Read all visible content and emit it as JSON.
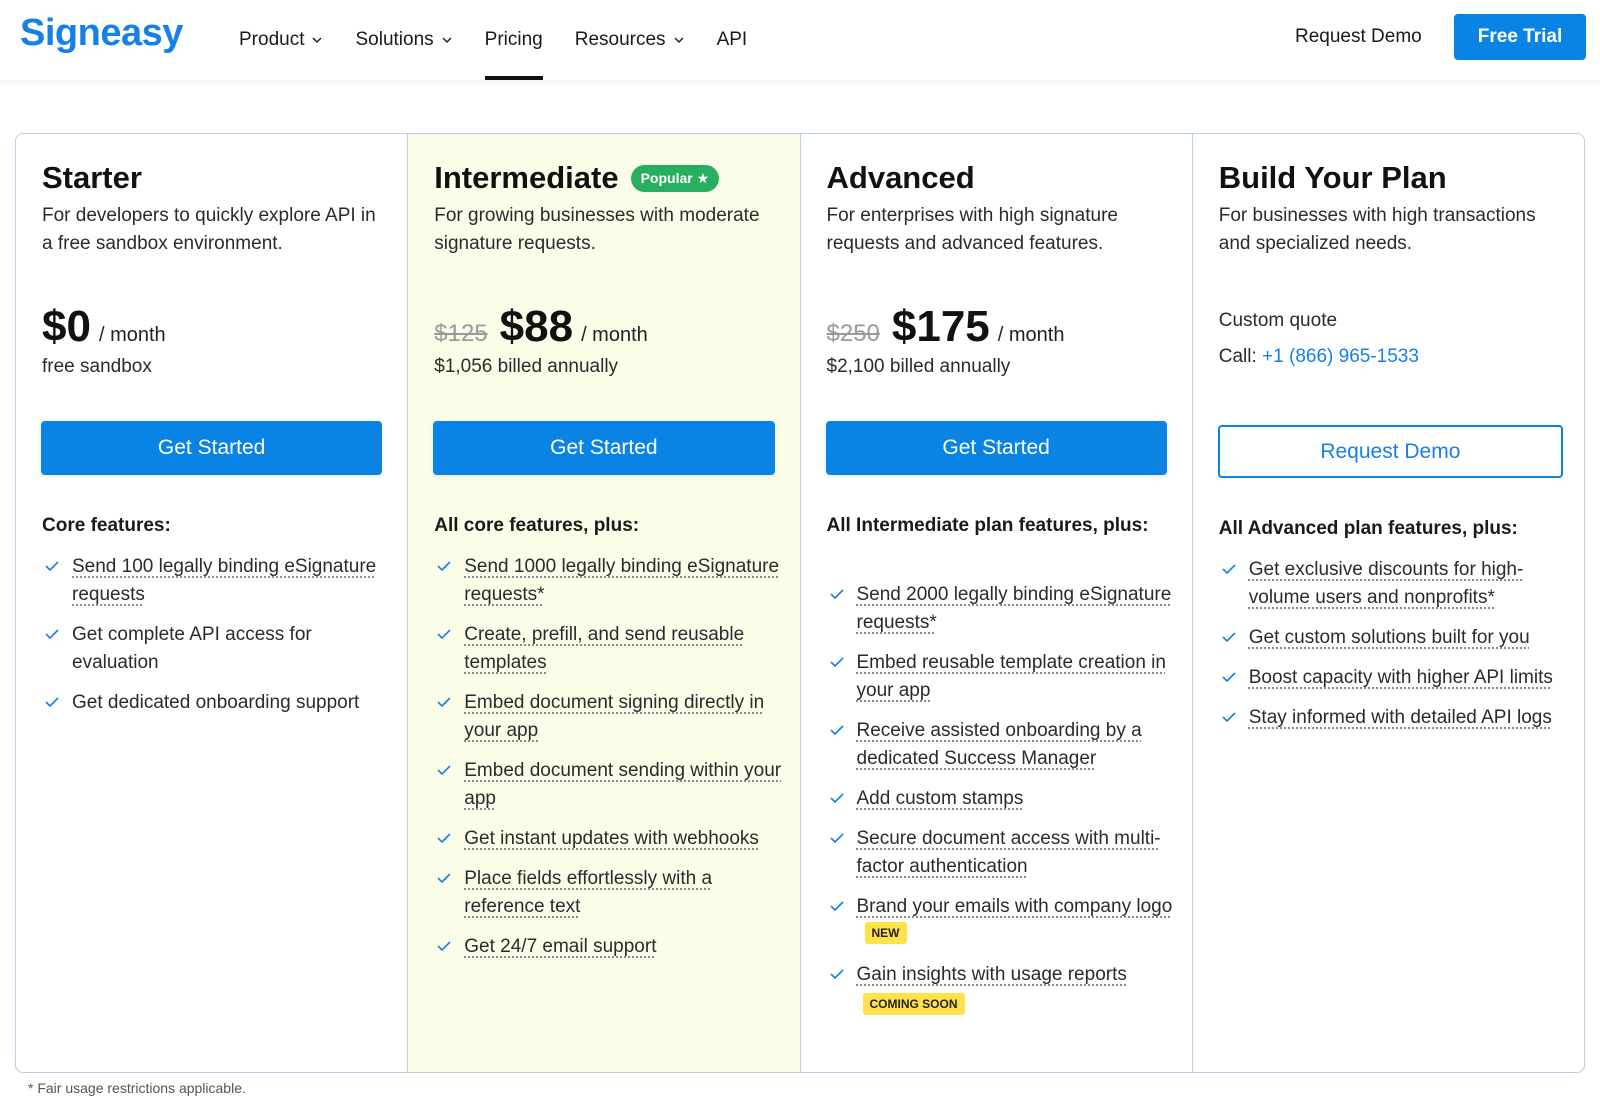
{
  "header": {
    "logo": "Signeasy",
    "nav": [
      {
        "label": "Product",
        "has_dropdown": true,
        "active": false
      },
      {
        "label": "Solutions",
        "has_dropdown": true,
        "active": false
      },
      {
        "label": "Pricing",
        "has_dropdown": false,
        "active": true
      },
      {
        "label": "Resources",
        "has_dropdown": true,
        "active": false
      },
      {
        "label": "API",
        "has_dropdown": false,
        "active": false
      }
    ],
    "request_demo": "Request Demo",
    "free_trial": "Free Trial"
  },
  "colors": {
    "brand_blue": "#0a84e4",
    "popular_green": "#27ae60",
    "featured_bg": "#fcfde9",
    "tag_yellow": "#ffe24a"
  },
  "plans": [
    {
      "title": "Starter",
      "description": "For developers to quickly explore API in a free sandbox environment.",
      "price": "$0",
      "period": "/ month",
      "billed": "free sandbox",
      "cta": "Get Started",
      "features_heading": "Core features:",
      "features": [
        {
          "text": "Send 100 legally binding eSignature requests",
          "dotted": true
        },
        {
          "text": "Get complete API access for evaluation",
          "dotted": false
        },
        {
          "text": "Get dedicated onboarding support",
          "dotted": false
        }
      ]
    },
    {
      "title": "Intermediate",
      "badge": "Popular ★",
      "description": "For growing businesses with moderate signature requests.",
      "price_old": "$125",
      "price": "$88",
      "period": "/ month",
      "billed": "$1,056 billed annually",
      "cta": "Get Started",
      "features_heading": "All core features, plus:",
      "features": [
        {
          "text": "Send 1000 legally binding eSignature requests*",
          "dotted": true
        },
        {
          "text": "Create, prefill, and send reusable templates",
          "dotted": true
        },
        {
          "text": "Embed document signing directly in your app",
          "dotted": true
        },
        {
          "text": "Embed document sending within your app",
          "dotted": true
        },
        {
          "text": "Get instant updates with webhooks",
          "dotted": true
        },
        {
          "text": "Place fields effortlessly with a reference text",
          "dotted": true
        },
        {
          "text": "Get 24/7 email support",
          "dotted": true
        }
      ]
    },
    {
      "title": "Advanced",
      "description": "For enterprises with high signature requests and advanced features.",
      "price_old": "$250",
      "price": "$175",
      "period": "/ month",
      "billed": "$2,100 billed annually",
      "cta": "Get Started",
      "features_heading": "All Intermediate plan features, plus:",
      "features": [
        {
          "text": "Send 2000 legally binding eSignature requests*",
          "dotted": true
        },
        {
          "text": "Embed reusable template creation in your app",
          "dotted": true
        },
        {
          "text": "Receive assisted onboarding by a dedicated Success Manager",
          "dotted": true
        },
        {
          "text": "Add custom stamps",
          "dotted": true
        },
        {
          "text": "Secure document access with multi-factor authentication",
          "dotted": true
        },
        {
          "text": "Brand your emails with company logo",
          "dotted": true,
          "tag": "NEW"
        },
        {
          "text": "Gain insights with usage reports",
          "dotted": true,
          "tag": "COMING SOON"
        }
      ]
    },
    {
      "title": "Build Your Plan",
      "description": "For businesses with high transactions and specialized needs.",
      "custom_quote": "Custom quote",
      "call_label": "Call:",
      "phone": "+1 (866) 965-1533",
      "cta": "Request Demo",
      "features_heading": "All Advanced plan features, plus:",
      "features": [
        {
          "text": "Get exclusive discounts for high-volume users and nonprofits*",
          "dotted": true
        },
        {
          "text": "Get custom solutions built for you",
          "dotted": true
        },
        {
          "text": "Boost capacity with higher API limits",
          "dotted": true
        },
        {
          "text": "Stay informed with detailed API logs",
          "dotted": true
        }
      ]
    }
  ],
  "footnote": "* Fair usage restrictions applicable."
}
